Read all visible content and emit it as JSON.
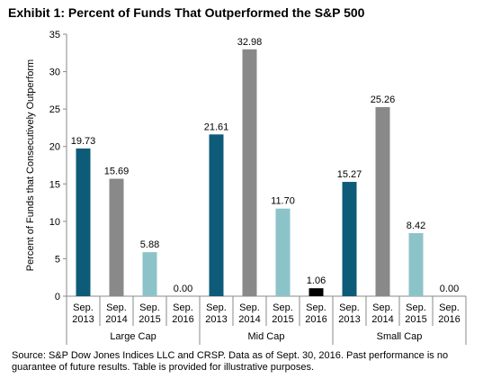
{
  "title": "Exhibit 1: Percent of Funds That Outperformed the S&P 500",
  "footnote": "Source: S&P Dow Jones Indices LLC and CRSP.  Data as of Sept. 30, 2016.  Past performance is no guarantee of future results.  Table is provided for illustrative purposes.",
  "chart_data": {
    "type": "bar",
    "title": "Exhibit 1: Percent of Funds That Outperformed the S&P 500",
    "ylabel": "Percent of Funds that Consecutively Outperform",
    "xlabel": "",
    "ylim": [
      0,
      35
    ],
    "yticks": [
      "0",
      "5",
      "10",
      "15",
      "20",
      "25",
      "30",
      "35"
    ],
    "grid": false,
    "groups": [
      {
        "label": "Large Cap",
        "bars": [
          {
            "line1": "Sep.",
            "line2": "2013",
            "value": 19.73,
            "label": "19.73",
            "color": "#0d5b78"
          },
          {
            "line1": "Sep.",
            "line2": "2014",
            "value": 15.69,
            "label": "15.69",
            "color": "#898989"
          },
          {
            "line1": "Sep.",
            "line2": "2015",
            "value": 5.88,
            "label": "5.88",
            "color": "#8cc3c8"
          },
          {
            "line1": "Sep.",
            "line2": "2016",
            "value": 0.0,
            "label": "0.00",
            "color": "#000000"
          }
        ]
      },
      {
        "label": "Mid Cap",
        "bars": [
          {
            "line1": "Sep.",
            "line2": "2013",
            "value": 21.61,
            "label": "21.61",
            "color": "#0d5b78"
          },
          {
            "line1": "Sep.",
            "line2": "2014",
            "value": 32.98,
            "label": "32.98",
            "color": "#898989"
          },
          {
            "line1": "Sep.",
            "line2": "2015",
            "value": 11.7,
            "label": "11.70",
            "color": "#8cc3c8"
          },
          {
            "line1": "Sep.",
            "line2": "2016",
            "value": 1.06,
            "label": "1.06",
            "color": "#000000"
          }
        ]
      },
      {
        "label": "Small Cap",
        "bars": [
          {
            "line1": "Sep.",
            "line2": "2013",
            "value": 15.27,
            "label": "15.27",
            "color": "#0d5b78"
          },
          {
            "line1": "Sep.",
            "line2": "2014",
            "value": 25.26,
            "label": "25.26",
            "color": "#898989"
          },
          {
            "line1": "Sep.",
            "line2": "2015",
            "value": 8.42,
            "label": "8.42",
            "color": "#8cc3c8"
          },
          {
            "line1": "Sep.",
            "line2": "2016",
            "value": 0.0,
            "label": "0.00",
            "color": "#000000"
          }
        ]
      }
    ]
  }
}
